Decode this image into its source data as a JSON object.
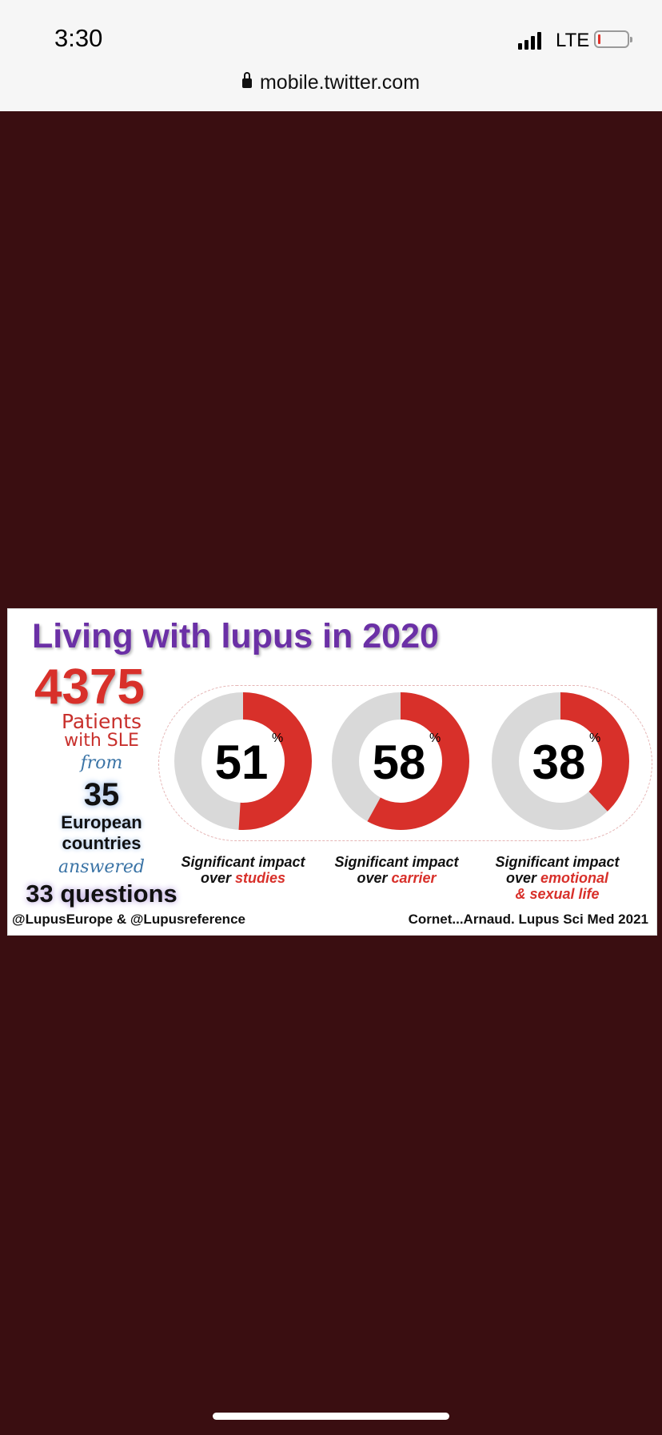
{
  "status_bar": {
    "time": "3:30",
    "network": "LTE",
    "battery_level": 0.08
  },
  "browser": {
    "url": "mobile.twitter.com"
  },
  "infographic": {
    "title": "Living with lupus in 2020",
    "patients_count": "4375",
    "patients_line1": "Patients",
    "patients_line2": "with SLE",
    "from": "from",
    "countries_count": "35",
    "countries_line1": "European",
    "countries_line2": "countries",
    "answered": "answered",
    "questions": "33 questions",
    "percent_sign": "%",
    "colors": {
      "title": "#6b30a6",
      "accent": "#d8302a",
      "ring_rest": "#d9d9d9"
    },
    "stats": [
      {
        "value": 51,
        "label_line1": "Significant impact",
        "label_prefix": "over ",
        "label_topic": "studies",
        "label_line3": ""
      },
      {
        "value": 58,
        "label_line1": "Significant impact",
        "label_prefix": "over ",
        "label_topic": "carrier",
        "label_line3": ""
      },
      {
        "value": 38,
        "label_line1": "Significant impact",
        "label_prefix": "over ",
        "label_topic": "emotional",
        "label_line3": "& sexual life"
      }
    ],
    "footer_left": "@LupusEurope & @Lupusreference",
    "footer_right": "Cornet...Arnaud. Lupus Sci Med 2021"
  }
}
